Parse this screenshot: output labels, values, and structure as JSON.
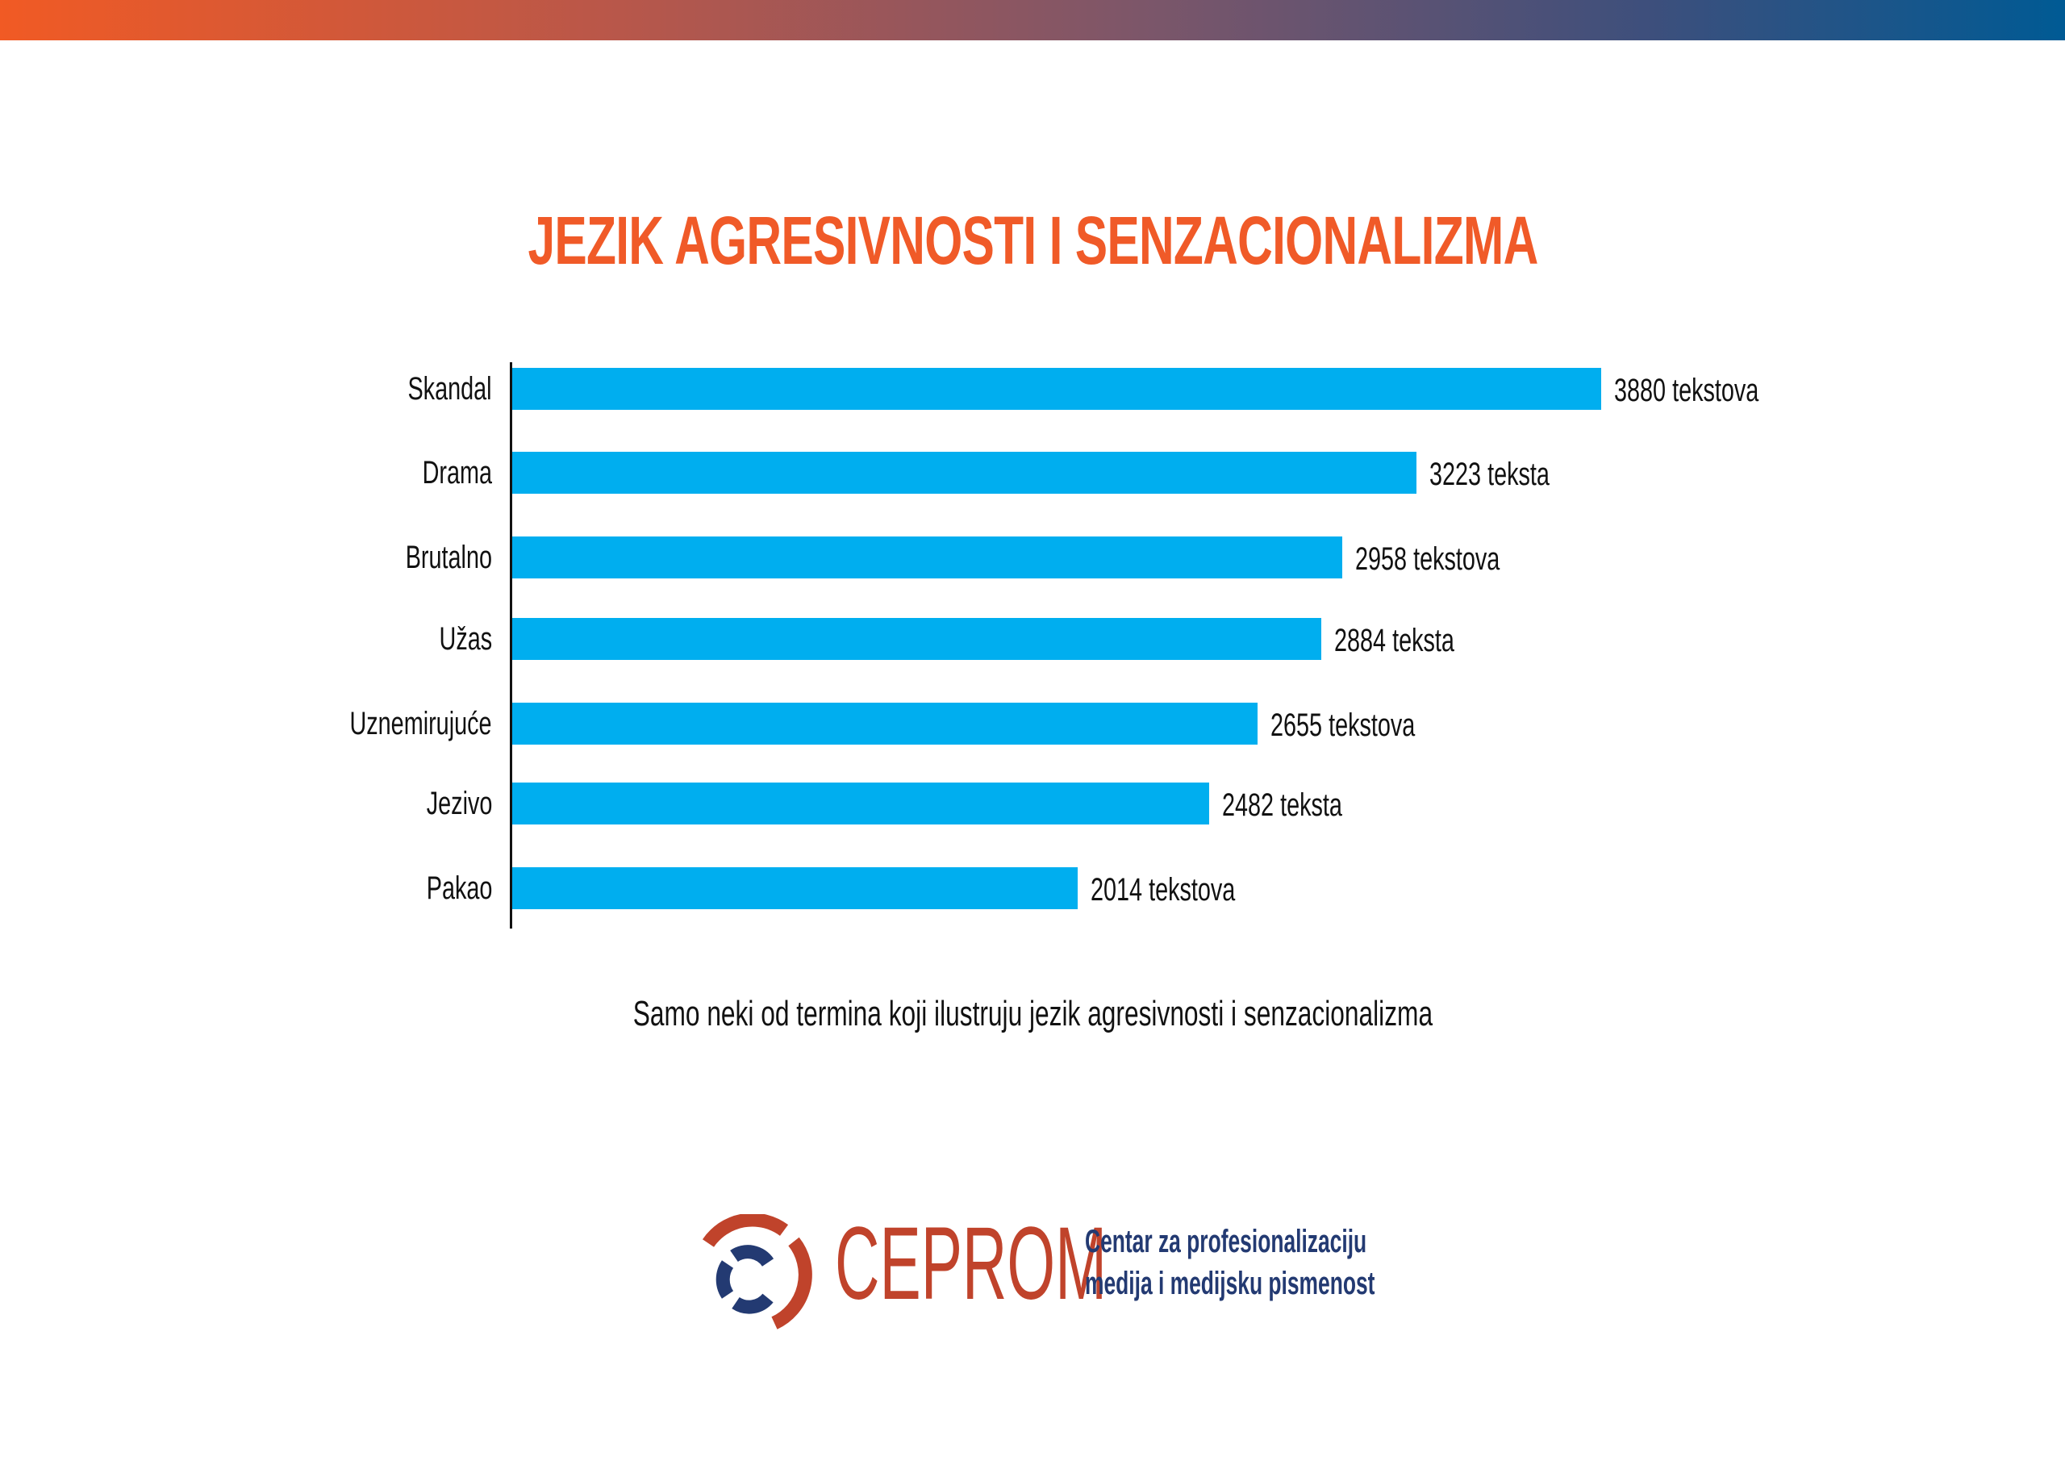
{
  "colors": {
    "title": "#f05a28",
    "bar": "#00aeef",
    "logo_red": "#c0432b",
    "logo_navy": "#233a72"
  },
  "chart_data": {
    "type": "bar",
    "orientation": "horizontal",
    "title": "JEZIK AGRESIVNOSTI I SENZACIONALIZMA",
    "subtitle": "Samo neki od termina koji ilustruju jezik agresivnosti i senzacionalizma",
    "categories": [
      "Skandal",
      "Drama",
      "Brutalno",
      "Užas",
      "Uznemirujuće",
      "Jezivo",
      "Pakao"
    ],
    "values": [
      3880,
      3223,
      2958,
      2884,
      2655,
      2482,
      2014
    ],
    "data_labels": [
      "3880 tekstova",
      "3223 teksta",
      "2958 tekstova",
      "2884 teksta",
      "2655 tekstova",
      "2482 teksta",
      "2014 tekstova"
    ],
    "xlabel": "",
    "ylabel": "",
    "xlim": [
      0,
      3880
    ],
    "grid": false,
    "legend": "none"
  },
  "logo": {
    "brand": "CEPROM",
    "tagline_line1": "Centar za profesionalizaciju",
    "tagline_line2": "medija i medijsku pismenost"
  }
}
